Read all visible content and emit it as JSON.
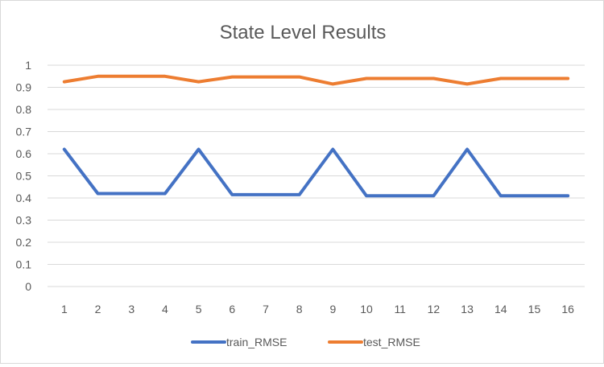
{
  "chart_data": {
    "type": "line",
    "title": "State Level Results",
    "xlabel": "",
    "ylabel": "",
    "categories": [
      "1",
      "2",
      "3",
      "4",
      "5",
      "6",
      "7",
      "8",
      "9",
      "10",
      "11",
      "12",
      "13",
      "14",
      "15",
      "16"
    ],
    "ylim": [
      0,
      1
    ],
    "yticks": [
      "0",
      "0.1",
      "0.2",
      "0.3",
      "0.4",
      "0.5",
      "0.6",
      "0.7",
      "0.8",
      "0.9",
      "1"
    ],
    "grid": true,
    "legend_position": "bottom",
    "series": [
      {
        "name": "train_RMSE",
        "color": "#4472C4",
        "values": [
          0.62,
          0.42,
          0.42,
          0.42,
          0.62,
          0.415,
          0.415,
          0.415,
          0.62,
          0.41,
          0.41,
          0.41,
          0.62,
          0.41,
          0.41,
          0.41
        ]
      },
      {
        "name": "test_RMSE",
        "color": "#ED7D31",
        "values": [
          0.925,
          0.95,
          0.95,
          0.95,
          0.925,
          0.947,
          0.947,
          0.947,
          0.915,
          0.94,
          0.94,
          0.94,
          0.915,
          0.94,
          0.94,
          0.94
        ]
      }
    ]
  }
}
